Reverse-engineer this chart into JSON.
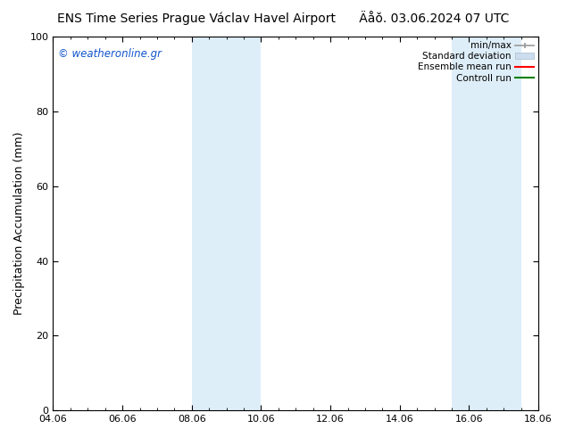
{
  "title_left": "ENS Time Series Prague Václav Havel Airport",
  "title_right": "Äåŏ. 03.06.2024 07 UTC",
  "ylabel": "Precipitation Accumulation (mm)",
  "ylim": [
    0,
    100
  ],
  "yticks": [
    0,
    20,
    40,
    60,
    80,
    100
  ],
  "xtick_labels": [
    "04.06",
    "06.06",
    "08.06",
    "10.06",
    "12.06",
    "14.06",
    "16.06",
    "18.06"
  ],
  "xtick_positions": [
    0,
    2,
    4,
    6,
    8,
    10,
    12,
    14
  ],
  "shaded_bands": [
    {
      "x_start": 4.0,
      "x_end": 5.0,
      "color": "#deeef9"
    },
    {
      "x_start": 5.0,
      "x_end": 6.0,
      "color": "#deeef9"
    },
    {
      "x_start": 11.5,
      "x_end": 12.5,
      "color": "#deeef9"
    },
    {
      "x_start": 12.5,
      "x_end": 13.5,
      "color": "#deeef9"
    }
  ],
  "legend_entries": [
    {
      "label": "min/max",
      "color": "#999999",
      "style": "errorbar"
    },
    {
      "label": "Standard deviation",
      "color": "#ccddf0",
      "style": "rect"
    },
    {
      "label": "Ensemble mean run",
      "color": "red",
      "style": "line"
    },
    {
      "label": "Controll run",
      "color": "green",
      "style": "line"
    }
  ],
  "watermark_text": "© weatheronline.gr",
  "watermark_color": "#1155cc",
  "background_color": "#ffffff",
  "plot_bg_color": "#ffffff",
  "tick_fontsize": 8,
  "title_fontsize": 10,
  "ylabel_fontsize": 9
}
